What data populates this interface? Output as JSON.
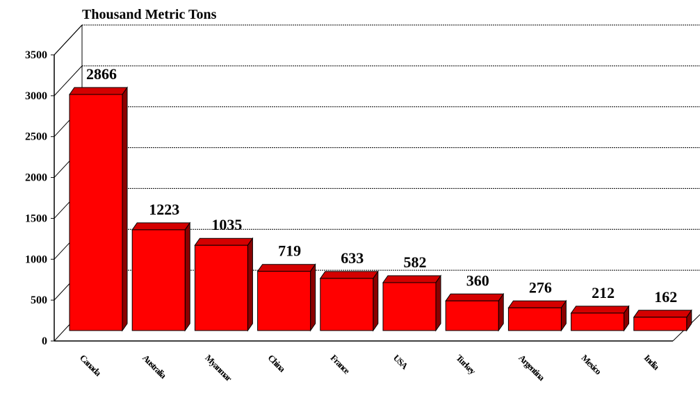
{
  "chart_data": {
    "type": "bar",
    "title": "",
    "ylabel": "Thousand Metric Tons",
    "xlabel": "",
    "categories": [
      "Canada",
      "Australia",
      "Myanmar",
      "China",
      "France",
      "USA",
      "Turkey",
      "Argentina",
      "Mexico",
      "India"
    ],
    "values": [
      2866,
      1223,
      1035,
      719,
      633,
      582,
      360,
      276,
      212,
      162
    ],
    "data_labels": [
      "2866",
      "1223",
      "1035",
      "719",
      "633",
      "582",
      "360",
      "276",
      "212",
      "162"
    ],
    "ylim": [
      0,
      3500
    ],
    "yticks": [
      "0",
      "500",
      "1000",
      "1500",
      "2000",
      "2500",
      "3000",
      "3500"
    ],
    "grid": true,
    "legend": "none",
    "style": "3d",
    "colors": {
      "bar_front": "#ff0000",
      "bar_top": "#d40000",
      "bar_side": "#8b0000",
      "grid": "#000000"
    }
  }
}
